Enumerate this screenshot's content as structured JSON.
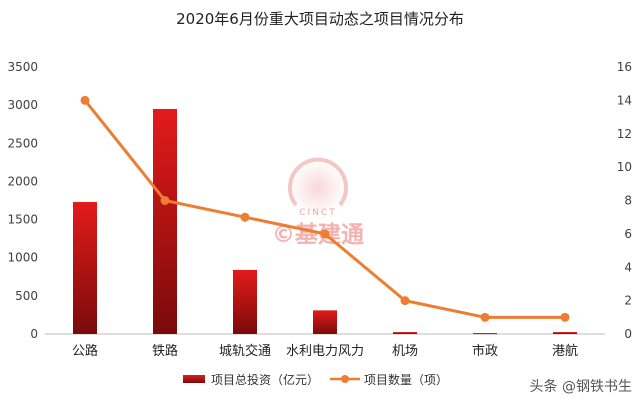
{
  "chart_data": {
    "type": "bar",
    "title": "2020年6月份重大项目动态之项目情况分布",
    "categories": [
      "公路",
      "铁路",
      "城轨交通",
      "水利电力风力",
      "机场",
      "市政",
      "港航"
    ],
    "series": [
      {
        "name": "项目总投资（亿元）",
        "type": "bar",
        "axis": "left",
        "values": [
          1730,
          2950,
          840,
          310,
          25,
          12,
          25
        ]
      },
      {
        "name": "项目数量（项）",
        "type": "line",
        "axis": "right",
        "values": [
          14,
          8,
          7,
          6,
          2,
          1,
          1
        ]
      }
    ],
    "left_axis": {
      "ylim": [
        0,
        3500
      ],
      "ticks": [
        0,
        500,
        1000,
        1500,
        2000,
        2500,
        3000,
        3500
      ]
    },
    "right_axis": {
      "ylim": [
        0,
        16
      ],
      "ticks": [
        0,
        2,
        4,
        6,
        8,
        10,
        12,
        14,
        16
      ]
    },
    "grid": false,
    "legend_position": "bottom",
    "colors": {
      "bar_top": "#e31b1b",
      "bar_bottom": "#7a0a0a",
      "line": "#ed7d31"
    }
  },
  "watermark": {
    "logo_text": "CINCT",
    "text": "©基建通"
  },
  "footer": {
    "credit": "头条 @钢铁书生"
  }
}
